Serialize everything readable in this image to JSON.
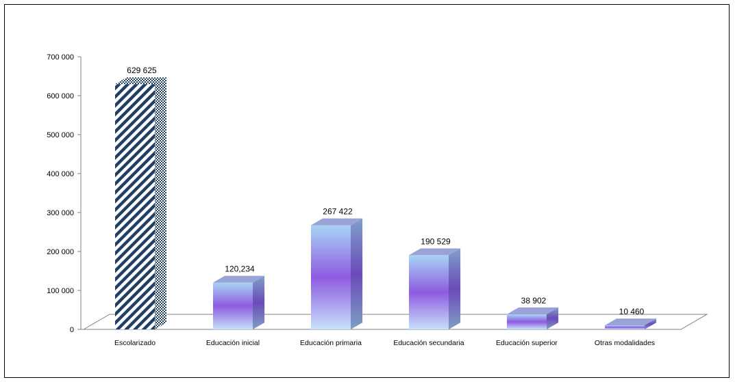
{
  "chart_data": {
    "type": "bar",
    "style": "3d-column",
    "categories": [
      "Escolarizado",
      "Educación inicial",
      "Educación primaria",
      "Educación secundaria",
      "Educación superior",
      "Otras modalidades"
    ],
    "values": [
      629625,
      120234,
      267422,
      190529,
      38902,
      10460
    ],
    "data_labels": [
      "629 625",
      "120,234",
      "267 422",
      "190 529",
      "38 902",
      "10 460"
    ],
    "yticks": [
      0,
      100000,
      200000,
      300000,
      400000,
      500000,
      600000,
      700000
    ],
    "ytick_labels": [
      "0",
      "100 000",
      "200 000",
      "300 000",
      "400 000",
      "500 000",
      "600 000",
      "700 000"
    ],
    "ylim": [
      0,
      700000
    ],
    "title": "",
    "xlabel": "",
    "ylabel": "",
    "grid": false,
    "legend": "none",
    "colors": {
      "stripe_dark": "#1f3f66",
      "stripe_light": "#ffffff",
      "gradient_top": "#a8d4f5",
      "gradient_mid": "#8e5be0",
      "gradient_bottom": "#c7e0fb",
      "side_face": "#6f8fb8",
      "top_face": "#9aa3d6",
      "axis": "#808080"
    }
  }
}
